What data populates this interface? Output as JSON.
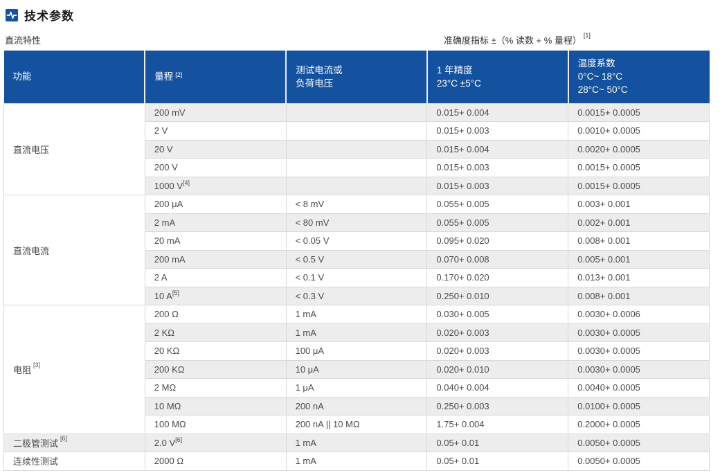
{
  "page": {
    "title": "技术参数",
    "section_label": "直流特性",
    "accuracy_note": "准确度指标 ±（% 读数 + % 量程）",
    "accuracy_note_sup": "[1]"
  },
  "colors": {
    "header_bg": "#14519f",
    "header_text": "#ffffff",
    "row_alt_bg": "#ededed",
    "border": "#d9d9d9",
    "body_text": "#4a4a4a",
    "accent_icon_bg": "#14519f"
  },
  "icons": {
    "title_icon": "waveform-pulse-icon"
  },
  "table": {
    "header": [
      {
        "lines": [
          "功能"
        ]
      },
      {
        "lines": [
          "量程"
        ],
        "sup": "[2]"
      },
      {
        "lines": [
          "测试电流或",
          "负荷电压"
        ]
      },
      {
        "lines": [
          "1 年精度",
          "23°C ±5°C"
        ]
      },
      {
        "lines": [
          "温度系数",
          "0°C~ 18°C",
          "28°C~ 50°C"
        ]
      }
    ],
    "sections": [
      {
        "function": "直流电压",
        "rows": [
          {
            "range": "200 mV",
            "test": "",
            "acc": "0.015+ 0.004",
            "temp": "0.0015+ 0.0005"
          },
          {
            "range": "2 V",
            "test": "",
            "acc": "0.015+ 0.003",
            "temp": "0.0010+ 0.0005"
          },
          {
            "range": "20 V",
            "test": "",
            "acc": "0.015+ 0.004",
            "temp": "0.0020+ 0.0005"
          },
          {
            "range": "200 V",
            "test": "",
            "acc": "0.015+ 0.003",
            "temp": "0.0015+ 0.0005"
          },
          {
            "range": "1000 V",
            "range_sup": "[4]",
            "test": "",
            "acc": "0.015+ 0.003",
            "temp": "0.0015+ 0.0005"
          }
        ]
      },
      {
        "function": "直流电流",
        "rows": [
          {
            "range": "200 μA",
            "test": "< 8 mV",
            "acc": "0.055+ 0.005",
            "temp": "0.003+ 0.001"
          },
          {
            "range": "2 mA",
            "test": "< 80 mV",
            "acc": "0.055+ 0.005",
            "temp": "0.002+ 0.001"
          },
          {
            "range": "20 mA",
            "test": "< 0.05 V",
            "acc": "0.095+ 0.020",
            "temp": "0.008+ 0.001"
          },
          {
            "range": "200 mA",
            "test": "< 0.5 V",
            "acc": "0.070+ 0.008",
            "temp": "0.005+ 0.001"
          },
          {
            "range": "2 A",
            "test": "< 0.1 V",
            "acc": "0.170+ 0.020",
            "temp": "0.013+ 0.001"
          },
          {
            "range": "10 A",
            "range_sup": "[5]",
            "test": "< 0.3 V",
            "acc": "0.250+ 0.010",
            "temp": "0.008+ 0.001"
          }
        ]
      },
      {
        "function": "电阻",
        "function_sup": "[3]",
        "rows": [
          {
            "range": "200 Ω",
            "test": "1 mA",
            "acc": "0.030+ 0.005",
            "temp": "0.0030+ 0.0006"
          },
          {
            "range": "2 KΩ",
            "test": "1 mA",
            "acc": "0.020+ 0.003",
            "temp": "0.0030+ 0.0005"
          },
          {
            "range": "20 KΩ",
            "test": "100 μA",
            "acc": "0.020+ 0.003",
            "temp": "0.0030+ 0.0005"
          },
          {
            "range": "200 KΩ",
            "test": "10 μA",
            "acc": "0.020+ 0.010",
            "temp": "0.0030+ 0.0005"
          },
          {
            "range": "2 MΩ",
            "test": "1 μA",
            "acc": "0.040+ 0.004",
            "temp": "0.0040+ 0.0005"
          },
          {
            "range": "10 MΩ",
            "test": "200 nA",
            "acc": "0.250+ 0.003",
            "temp": "0.0100+ 0.0005"
          },
          {
            "range": "100 MΩ",
            "test": "200 nA || 10 MΩ",
            "acc": "1.75+ 0.004",
            "temp": "0.2000+ 0.0005"
          }
        ]
      },
      {
        "function": "二极管测试",
        "function_sup": "[6]",
        "rows": [
          {
            "range": "2.0 V",
            "range_sup": "[6]",
            "test": "1 mA",
            "acc": "0.05+ 0.01",
            "temp": "0.0050+ 0.0005"
          }
        ]
      },
      {
        "function": "连续性测试",
        "rows": [
          {
            "range": "2000 Ω",
            "test": "1 mA",
            "acc": "0.05+ 0.01",
            "temp": "0.0050+ 0.0005"
          }
        ]
      }
    ]
  }
}
